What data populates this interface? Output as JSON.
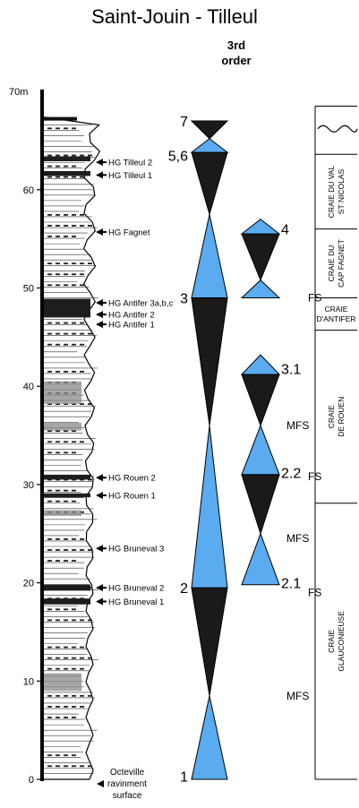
{
  "title": "Saint-Jouin - Tilleul",
  "order_header": {
    "line1": "3rd",
    "line2": "order"
  },
  "colors": {
    "transgressive": "#5aabf0",
    "regressive": "#1a1a1a",
    "column_fill": "#ffffff",
    "stroke": "#000000"
  },
  "depth_axis": {
    "unit_label": "70m",
    "ticks": [
      "0",
      "10",
      "20",
      "30",
      "40",
      "50",
      "60"
    ]
  },
  "hardgrounds": [
    {
      "label": "HG Tilleul 2",
      "depth_m": 62.8
    },
    {
      "label": "HG Tilleul 1",
      "depth_m": 61.5
    },
    {
      "label": "HG Fagnet",
      "depth_m": 55.7
    },
    {
      "label": "HG Antifer 3a,b,c",
      "depth_m": 48.5
    },
    {
      "label": "HG Antifer 2",
      "depth_m": 47.3
    },
    {
      "label": "HG Antifer 1",
      "depth_m": 46.3
    },
    {
      "label": "HG Rouen 2",
      "depth_m": 30.7
    },
    {
      "label": "HG Rouen 1",
      "depth_m": 28.9
    },
    {
      "label": "HG Bruneval 3",
      "depth_m": 23.5
    },
    {
      "label": "HG Bruneval 2",
      "depth_m": 19.5
    },
    {
      "label": "HG Bruneval 1",
      "depth_m": 18.1
    },
    {
      "label": "Octeville ravinment surface",
      "depth_m": 0.0
    }
  ],
  "sequences_3rd_order": {
    "labels": [
      {
        "text": "7",
        "depth_m": 67.0
      },
      {
        "text": "5,6",
        "depth_m": 63.5
      },
      {
        "text": "3",
        "depth_m": 49.0
      },
      {
        "text": "2",
        "depth_m": 19.5
      },
      {
        "text": "1",
        "depth_m": 0.3
      }
    ],
    "triangles": [
      {
        "type": "transgressive",
        "base_m": 0.0,
        "apex_m": 8.5
      },
      {
        "type": "regressive",
        "base_m": 19.5,
        "apex_m": 8.5
      },
      {
        "type": "transgressive",
        "base_m": 19.5,
        "apex_m": 36.0
      },
      {
        "type": "regressive",
        "base_m": 49.0,
        "apex_m": 36.0
      },
      {
        "type": "transgressive",
        "base_m": 49.0,
        "apex_m": 57.5
      },
      {
        "type": "regressive",
        "base_m": 63.8,
        "apex_m": 57.5
      },
      {
        "type": "transgressive",
        "base_m": 63.8,
        "apex_m": 65.2
      },
      {
        "type": "regressive",
        "base_m": 67.0,
        "apex_m": 65.2
      }
    ]
  },
  "sequences_4th_order": {
    "labels": [
      {
        "text": "4",
        "depth_m": 56.0
      },
      {
        "text": "3.1",
        "depth_m": 41.8
      },
      {
        "text": "2.2",
        "depth_m": 31.2
      },
      {
        "text": "2.1",
        "depth_m": 20.0
      }
    ],
    "surface_labels": [
      {
        "text": "FS",
        "depth_m": 49.0
      },
      {
        "text": "MFS",
        "depth_m": 36.0
      },
      {
        "text": "FS",
        "depth_m": 30.8
      },
      {
        "text": "MFS",
        "depth_m": 24.5
      },
      {
        "text": "FS",
        "depth_m": 19.0
      },
      {
        "text": "MFS",
        "depth_m": 8.5
      }
    ],
    "triangles": [
      {
        "type": "transgressive",
        "base_m": 49.0,
        "apex_m": 50.8
      },
      {
        "type": "regressive",
        "base_m": 55.5,
        "apex_m": 50.8
      },
      {
        "type": "transgressive",
        "base_m": 55.5,
        "apex_m": 57.0
      },
      {
        "type": "transgressive",
        "base_m": 41.2,
        "apex_m": 43.2
      },
      {
        "type": "regressive",
        "base_m": 41.2,
        "apex_m": 36.0
      },
      {
        "type": "transgressive",
        "base_m": 31.0,
        "apex_m": 36.0
      },
      {
        "type": "regressive",
        "base_m": 31.0,
        "apex_m": 25.0
      },
      {
        "type": "transgressive",
        "base_m": 19.8,
        "apex_m": 25.0
      }
    ]
  },
  "formations": [
    {
      "name": "CRAIE DU VAL ST NICOLAS",
      "lines": [
        "CRAIE DU VAL",
        "ST NICOLAS"
      ],
      "top_m": 63.6,
      "bottom_m": 56.0,
      "rotated": true
    },
    {
      "name": "CRAIE DU CAP FAGNET",
      "lines": [
        "CRAIE DU",
        "CAP FAGNET"
      ],
      "top_m": 56.0,
      "bottom_m": 49.0,
      "rotated": true
    },
    {
      "name": "CRAIE D'ANTIFER",
      "lines": [
        "CRAIE",
        "D'ANTIFER"
      ],
      "top_m": 49.0,
      "bottom_m": 45.7,
      "rotated": false
    },
    {
      "name": "CRAIE DE ROUEN",
      "lines": [
        "CRAIE",
        "DE ROUEN"
      ],
      "top_m": 45.7,
      "bottom_m": 28.1,
      "rotated": true
    },
    {
      "name": "CRAIE GLAUCONIEUSE",
      "lines": [
        "CRAIE",
        "GLAUCONIEUSE"
      ],
      "top_m": 28.1,
      "bottom_m": 0.0,
      "rotated": true
    }
  ]
}
